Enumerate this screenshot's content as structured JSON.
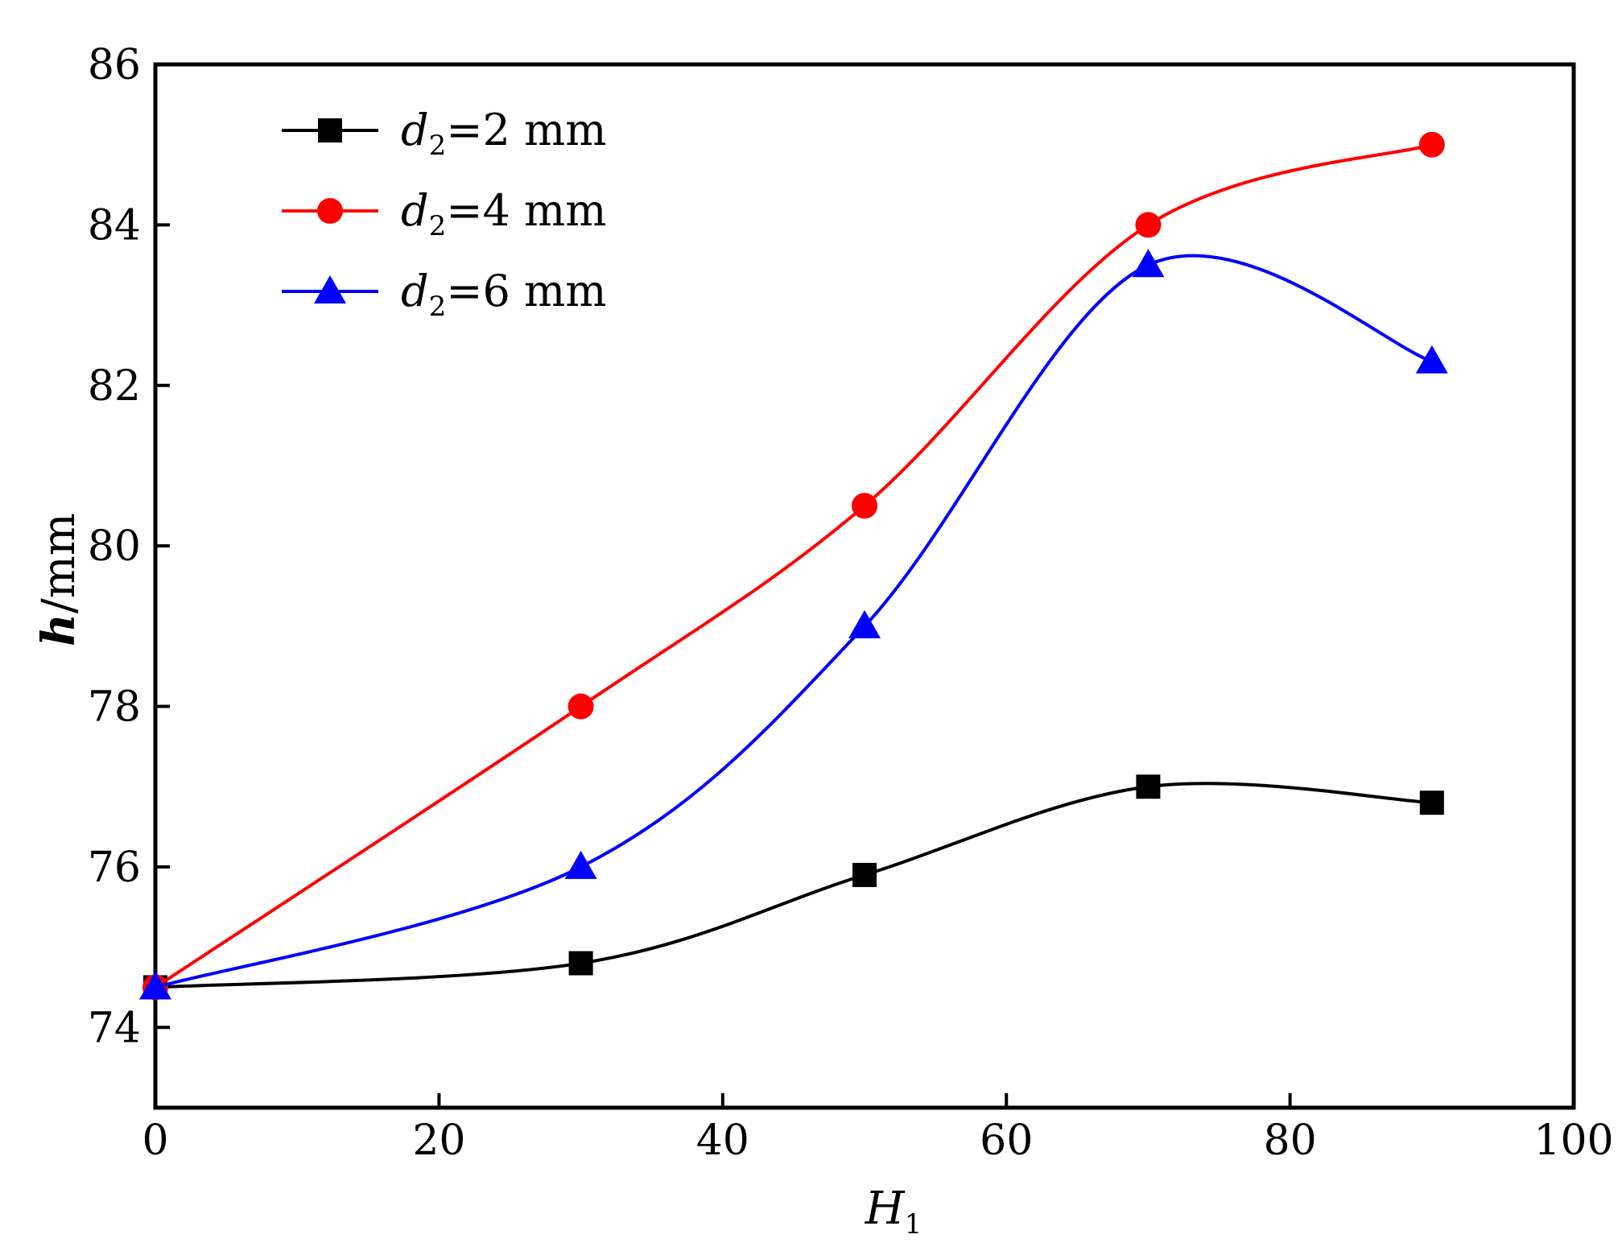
{
  "chart_data": {
    "type": "line",
    "xlabel": "H",
    "xlabel_sub": "1",
    "ylabel_var": "h",
    "ylabel_unit": "/mm",
    "xlim": [
      0,
      100
    ],
    "ylim": [
      73,
      86
    ],
    "xticks": [
      0,
      20,
      40,
      60,
      80,
      100
    ],
    "yticks": [
      74,
      76,
      78,
      80,
      82,
      84,
      86
    ],
    "legend_position": "top-left",
    "grid": false,
    "series": [
      {
        "name": "d2=2 mm",
        "label_var": "d",
        "label_sub": "2",
        "label_rest": "=2 mm",
        "color": "#000000",
        "marker": "square",
        "x": [
          0,
          30,
          50,
          70,
          90
        ],
        "y": [
          74.5,
          74.8,
          75.9,
          77.0,
          76.8
        ]
      },
      {
        "name": "d2=4 mm",
        "label_var": "d",
        "label_sub": "2",
        "label_rest": "=4 mm",
        "color": "#ff0000",
        "marker": "circle",
        "x": [
          0,
          30,
          50,
          70,
          90
        ],
        "y": [
          74.5,
          78.0,
          80.5,
          84.0,
          85.0
        ]
      },
      {
        "name": "d2=6 mm",
        "label_var": "d",
        "label_sub": "2",
        "label_rest": "=6 mm",
        "color": "#0000ff",
        "marker": "triangle",
        "x": [
          0,
          30,
          50,
          70,
          90
        ],
        "y": [
          74.5,
          76.0,
          79.0,
          83.5,
          82.3
        ]
      }
    ]
  }
}
